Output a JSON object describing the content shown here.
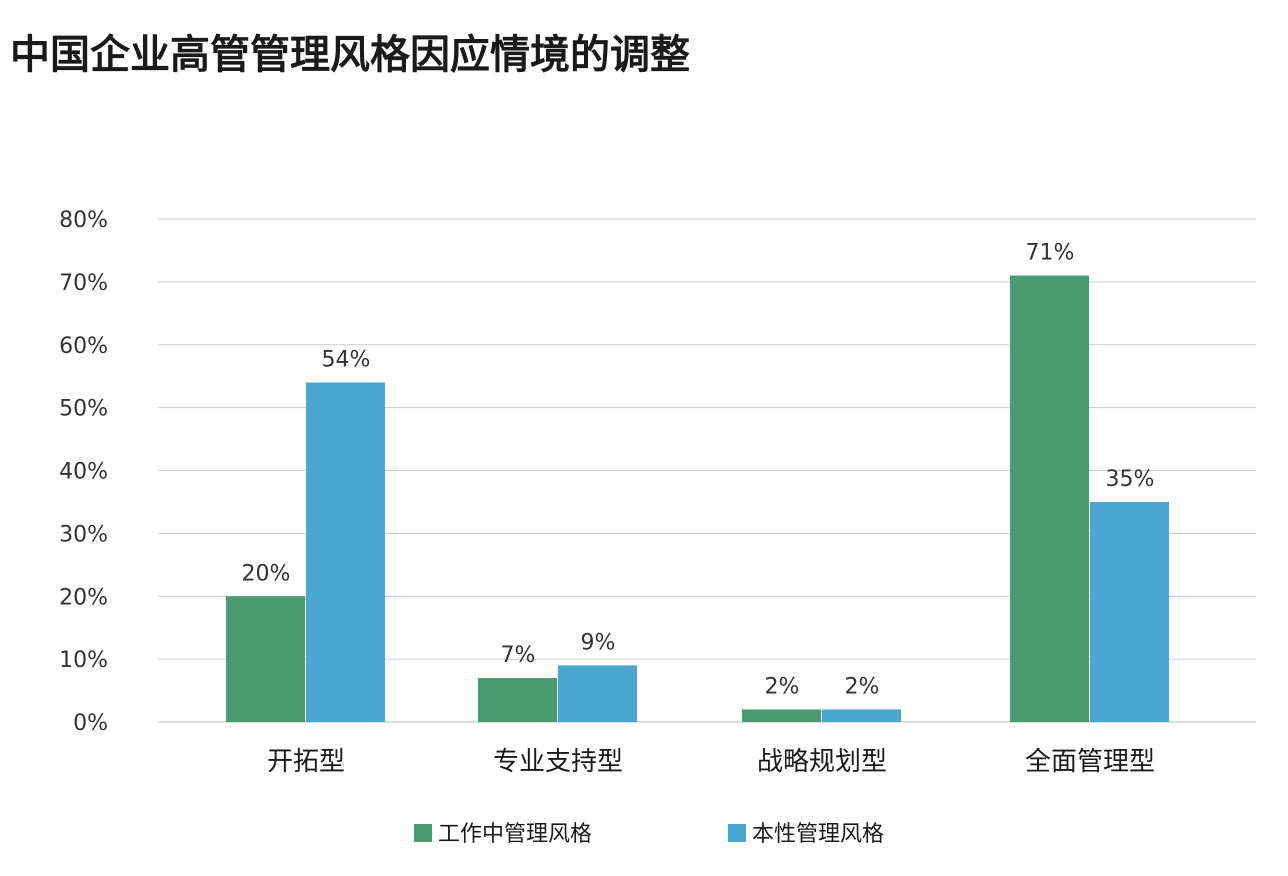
{
  "chart_data": {
    "type": "bar",
    "title": "中国企业高管管理风格因应情境的调整",
    "categories": [
      "开拓型",
      "专业支持型",
      "战略规划型",
      "全面管理型"
    ],
    "series": [
      {
        "name": "工作中管理风格",
        "values": [
          20,
          7,
          2,
          71
        ],
        "labels": [
          "20%",
          "7%",
          "2%",
          "71%"
        ],
        "color": "#4a9a72"
      },
      {
        "name": "本性管理风格",
        "values": [
          54,
          9,
          2,
          35
        ],
        "labels": [
          "54%",
          "9%",
          "2%",
          "35%"
        ],
        "color": "#4aa8d0"
      }
    ],
    "ylim": [
      0,
      80
    ],
    "yticks": [
      0,
      10,
      20,
      30,
      40,
      50,
      60,
      70,
      80
    ],
    "ytick_labels": [
      "0%",
      "10%",
      "20%",
      "30%",
      "40%",
      "50%",
      "60%",
      "70%",
      "80%"
    ],
    "grid": true,
    "legend_position": "bottom"
  }
}
